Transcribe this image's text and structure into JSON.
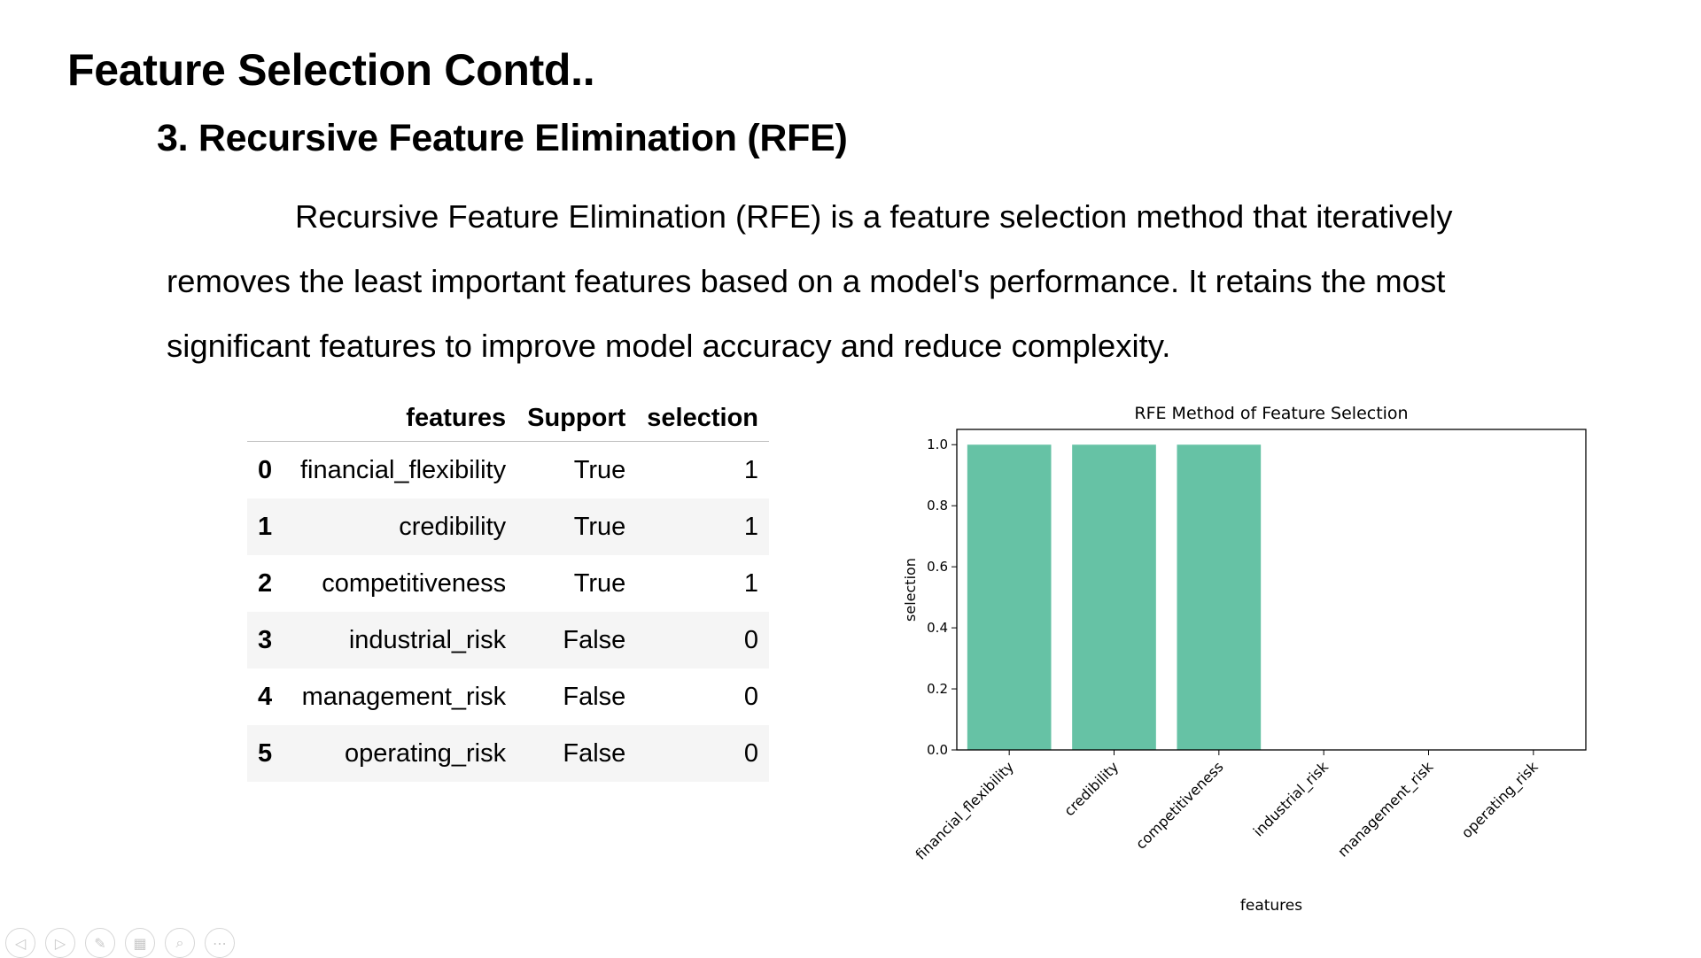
{
  "slide": {
    "title": "Feature Selection Contd..",
    "subtitle": "3. Recursive Feature Elimination (RFE)",
    "paragraph": [
      "Recursive Feature Elimination (RFE) is a feature selection method that iteratively",
      "removes the least important features based on a model's performance. It retains the most",
      "significant features to improve model accuracy and reduce complexity."
    ]
  },
  "table": {
    "headers": [
      "",
      "features",
      "Support",
      "selection"
    ],
    "rows": [
      [
        "0",
        "financial_flexibility",
        "True",
        "1"
      ],
      [
        "1",
        "credibility",
        "True",
        "1"
      ],
      [
        "2",
        "competitiveness",
        "True",
        "1"
      ],
      [
        "3",
        "industrial_risk",
        "False",
        "0"
      ],
      [
        "4",
        "management_risk",
        "False",
        "0"
      ],
      [
        "5",
        "operating_risk",
        "False",
        "0"
      ]
    ]
  },
  "chart_data": {
    "type": "bar",
    "title": "RFE Method of Feature Selection",
    "xlabel": "features",
    "ylabel": "selection",
    "categories": [
      "financial_flexibility",
      "credibility",
      "competitiveness",
      "industrial_risk",
      "management_risk",
      "operating_risk"
    ],
    "values": [
      1,
      1,
      1,
      0,
      0,
      0
    ],
    "ylim": [
      0,
      1.05
    ],
    "yticks": [
      "0.0",
      "0.2",
      "0.4",
      "0.6",
      "0.8",
      "1.0"
    ],
    "bar_color": "#66c2a5",
    "grid": false
  },
  "toolbar": {
    "items": [
      {
        "name": "previous-slide-icon",
        "glyph": "◁"
      },
      {
        "name": "next-slide-icon",
        "glyph": "▷"
      },
      {
        "name": "pen-icon",
        "glyph": "✎"
      },
      {
        "name": "slides-grid-icon",
        "glyph": "▦"
      },
      {
        "name": "zoom-icon",
        "glyph": "⌕"
      },
      {
        "name": "more-options-icon",
        "glyph": "⋯"
      }
    ]
  }
}
